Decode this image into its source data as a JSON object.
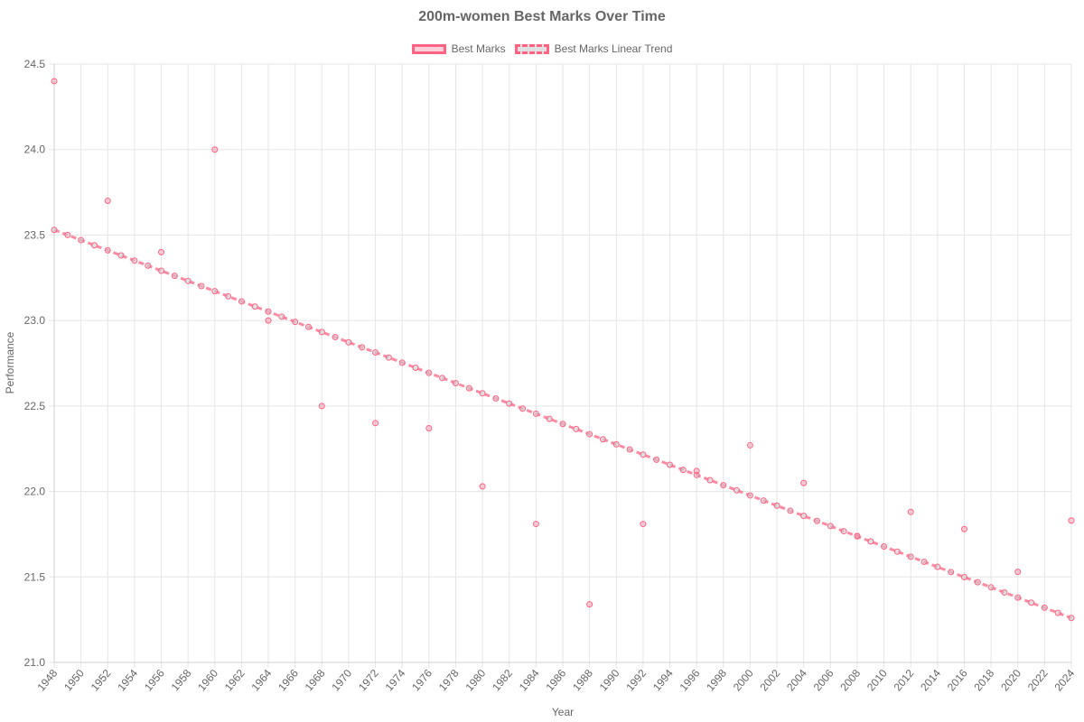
{
  "chart_data": {
    "type": "scatter",
    "title": "200m-women Best Marks Over Time",
    "xlabel": "Year",
    "ylabel": "Performance",
    "xlim": [
      1948,
      2024
    ],
    "ylim": [
      21.0,
      24.5
    ],
    "x_ticks": [
      1948,
      1950,
      1952,
      1954,
      1956,
      1958,
      1960,
      1962,
      1964,
      1966,
      1968,
      1970,
      1972,
      1974,
      1976,
      1978,
      1980,
      1982,
      1984,
      1986,
      1988,
      1990,
      1992,
      1994,
      1996,
      1998,
      2000,
      2002,
      2004,
      2006,
      2008,
      2010,
      2012,
      2014,
      2016,
      2018,
      2020,
      2022,
      2024
    ],
    "y_ticks": [
      21.0,
      21.5,
      22.0,
      22.5,
      23.0,
      23.5,
      24.0,
      24.5
    ],
    "grid": true,
    "legend_position": "top",
    "colors": {
      "marks": "#ff6384",
      "trend": "#ff6384",
      "grid": "#e5e5e5"
    },
    "series": [
      {
        "name": "Best Marks",
        "style": "points",
        "points": [
          [
            1948,
            24.4
          ],
          [
            1952,
            23.7
          ],
          [
            1956,
            23.4
          ],
          [
            1960,
            24.0
          ],
          [
            1964,
            23.0
          ],
          [
            1968,
            22.5
          ],
          [
            1972,
            22.4
          ],
          [
            1976,
            22.37
          ],
          [
            1980,
            22.03
          ],
          [
            1984,
            21.81
          ],
          [
            1988,
            21.34
          ],
          [
            1992,
            21.81
          ],
          [
            1996,
            22.12
          ],
          [
            2000,
            22.27
          ],
          [
            2004,
            22.05
          ],
          [
            2008,
            21.74
          ],
          [
            2012,
            21.88
          ],
          [
            2016,
            21.78
          ],
          [
            2020,
            21.53
          ],
          [
            2024,
            21.83
          ]
        ]
      },
      {
        "name": "Best Marks Linear Trend",
        "style": "dashed-line-with-points",
        "x_start": 1948,
        "x_end": 2024,
        "y_start": 23.53,
        "y_end": 21.26
      }
    ]
  }
}
